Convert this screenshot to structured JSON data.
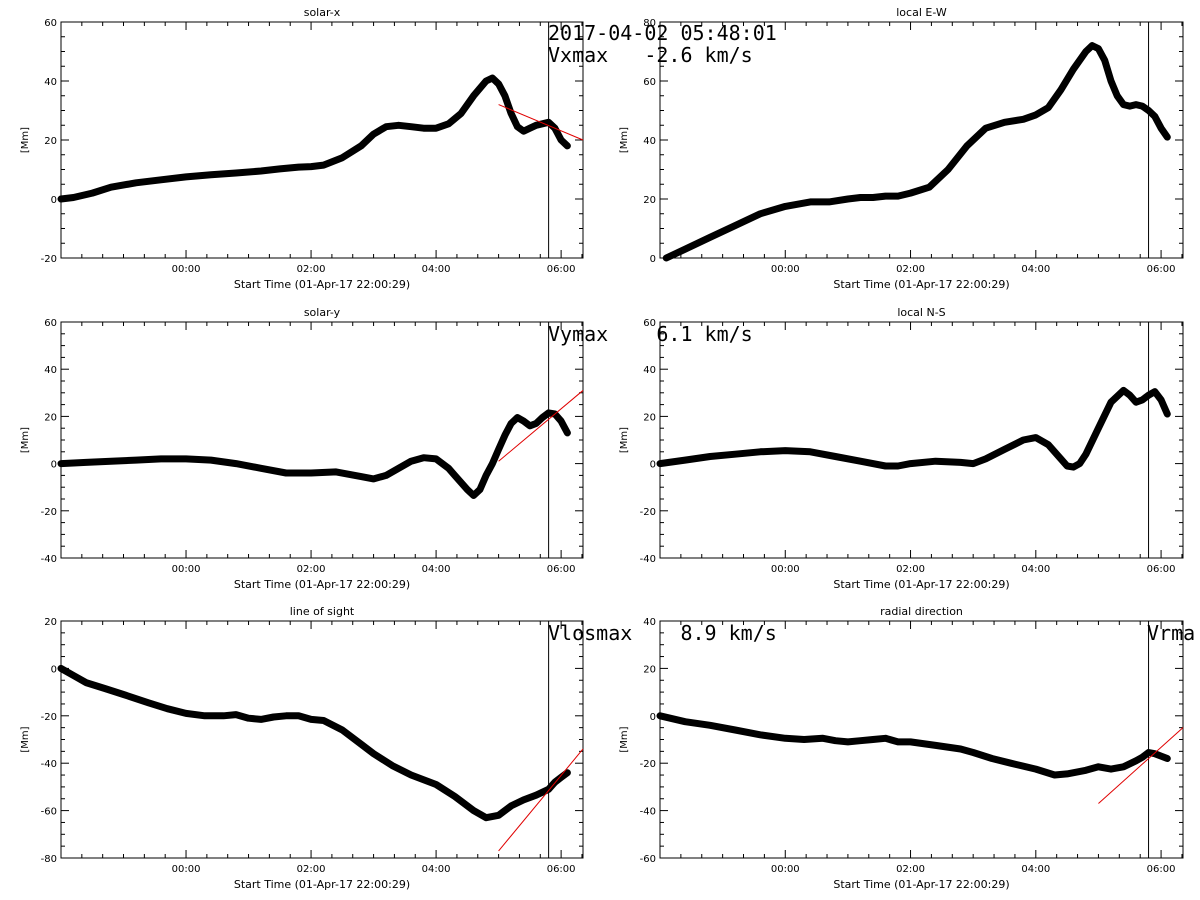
{
  "figure": {
    "timestamp": "2017-04-02 05:48:01",
    "vertical_marker_time_hours": 5.8
  },
  "chart_data": [
    {
      "type": "line",
      "title": "solar-x",
      "xlabel": "Start Time (01-Apr-17 22:00:29)",
      "ylabel": "[Mm]",
      "xlim_hours": [
        -2.0,
        6.35
      ],
      "ylim": [
        -20,
        60
      ],
      "xticks": [
        "00:00",
        "02:00",
        "04:00",
        "06:00"
      ],
      "yticks": [
        -20,
        0,
        20,
        40,
        60
      ],
      "annotation": "Vxmax   -2.6 km/s",
      "series": [
        {
          "x": [
            -2.0,
            -1.8,
            -1.5,
            -1.2,
            -0.8,
            -0.4,
            0.0,
            0.4,
            0.8,
            1.2,
            1.5,
            1.8,
            2.0,
            2.2,
            2.5,
            2.8,
            3.0,
            3.2,
            3.4,
            3.6,
            3.8,
            4.0,
            4.2,
            4.4,
            4.6,
            4.8,
            4.9,
            5.0,
            5.1,
            5.2,
            5.3,
            5.4,
            5.5,
            5.6,
            5.7,
            5.8,
            5.9,
            6.0,
            6.1
          ],
          "y": [
            0,
            0.5,
            2,
            4,
            5.5,
            6.5,
            7.5,
            8.2,
            8.8,
            9.5,
            10.2,
            10.8,
            11,
            11.5,
            14,
            18,
            22,
            24.5,
            25,
            24.5,
            24,
            24,
            25.5,
            29,
            35,
            40,
            41,
            39,
            35,
            29,
            24.5,
            23,
            24,
            25,
            25.5,
            26,
            24,
            20,
            18
          ]
        }
      ],
      "fit": {
        "x": [
          5.0,
          6.35
        ],
        "y": [
          32,
          20
        ]
      }
    },
    {
      "type": "line",
      "title": "local E-W",
      "xlabel": "Start Time (01-Apr-17 22:00:29)",
      "ylabel": "[Mm]",
      "xlim_hours": [
        -2.0,
        6.35
      ],
      "ylim": [
        0,
        80
      ],
      "xticks": [
        "00:00",
        "02:00",
        "04:00",
        "06:00"
      ],
      "yticks": [
        0,
        20,
        40,
        60,
        80
      ],
      "annotation": "",
      "series": [
        {
          "x": [
            -1.9,
            -1.6,
            -1.2,
            -0.8,
            -0.4,
            0.0,
            0.4,
            0.7,
            1.0,
            1.2,
            1.4,
            1.6,
            1.8,
            2.0,
            2.3,
            2.6,
            2.9,
            3.2,
            3.5,
            3.8,
            4.0,
            4.2,
            4.4,
            4.6,
            4.8,
            4.9,
            5.0,
            5.1,
            5.2,
            5.3,
            5.4,
            5.5,
            5.6,
            5.7,
            5.8,
            5.9,
            6.0,
            6.1
          ],
          "y": [
            0,
            3,
            7,
            11,
            15,
            17.5,
            19,
            19,
            20,
            20.5,
            20.5,
            21,
            21,
            22,
            24,
            30,
            38,
            44,
            46,
            47,
            48.5,
            51,
            57,
            64,
            70,
            72,
            71,
            67,
            60,
            55,
            52,
            51.5,
            52,
            51.5,
            50,
            48,
            44,
            41
          ]
        }
      ],
      "fit": null
    },
    {
      "type": "line",
      "title": "solar-y",
      "xlabel": "Start Time (01-Apr-17 22:00:29)",
      "ylabel": "[Mm]",
      "xlim_hours": [
        -2.0,
        6.35
      ],
      "ylim": [
        -40,
        60
      ],
      "xticks": [
        "00:00",
        "02:00",
        "04:00",
        "06:00"
      ],
      "yticks": [
        -40,
        -20,
        0,
        20,
        40,
        60
      ],
      "annotation": "Vymax    6.1 km/s",
      "series": [
        {
          "x": [
            -2.0,
            -1.6,
            -1.2,
            -0.8,
            -0.4,
            0.0,
            0.4,
            0.8,
            1.2,
            1.6,
            2.0,
            2.4,
            2.8,
            3.0,
            3.2,
            3.4,
            3.6,
            3.8,
            4.0,
            4.2,
            4.3,
            4.5,
            4.6,
            4.7,
            4.8,
            4.9,
            5.0,
            5.1,
            5.2,
            5.3,
            5.4,
            5.5,
            5.6,
            5.7,
            5.8,
            5.9,
            6.0,
            6.1
          ],
          "y": [
            0,
            0.5,
            1,
            1.5,
            2,
            2,
            1.5,
            0,
            -2,
            -4,
            -4,
            -3.5,
            -5.5,
            -6.5,
            -5,
            -2,
            1,
            2.5,
            2,
            -2,
            -5,
            -11,
            -13.5,
            -11,
            -5,
            0,
            6,
            12,
            17,
            19.5,
            18,
            16,
            17,
            19.5,
            21.5,
            21,
            18,
            13
          ]
        }
      ],
      "fit": {
        "x": [
          5.0,
          6.35
        ],
        "y": [
          1,
          31
        ]
      }
    },
    {
      "type": "line",
      "title": "local N-S",
      "xlabel": "Start Time (01-Apr-17 22:00:29)",
      "ylabel": "[Mm]",
      "xlim_hours": [
        -2.0,
        6.35
      ],
      "ylim": [
        -40,
        60
      ],
      "xticks": [
        "00:00",
        "02:00",
        "04:00",
        "06:00"
      ],
      "yticks": [
        -40,
        -20,
        0,
        20,
        40,
        60
      ],
      "annotation": "",
      "series": [
        {
          "x": [
            -2.0,
            -1.6,
            -1.2,
            -0.8,
            -0.4,
            0.0,
            0.4,
            0.8,
            1.2,
            1.6,
            1.8,
            2.0,
            2.4,
            2.8,
            3.0,
            3.2,
            3.5,
            3.8,
            4.0,
            4.2,
            4.4,
            4.5,
            4.6,
            4.7,
            4.8,
            5.0,
            5.2,
            5.4,
            5.5,
            5.6,
            5.7,
            5.8,
            5.9,
            6.0,
            6.1
          ],
          "y": [
            0,
            1.5,
            3,
            4,
            5,
            5.5,
            5,
            3,
            1,
            -1,
            -1,
            0,
            1,
            0.5,
            0,
            2,
            6,
            10,
            11,
            8,
            2,
            -1,
            -1.5,
            0,
            4,
            15,
            26,
            31,
            29,
            26,
            27,
            29,
            30.5,
            27,
            21
          ]
        }
      ],
      "fit": null
    },
    {
      "type": "line",
      "title": "line of sight",
      "xlabel": "Start Time (01-Apr-17 22:00:29)",
      "ylabel": "[Mm]",
      "xlim_hours": [
        -2.0,
        6.35
      ],
      "ylim": [
        -80,
        20
      ],
      "xticks": [
        "00:00",
        "02:00",
        "04:00",
        "06:00"
      ],
      "yticks": [
        -80,
        -60,
        -40,
        -20,
        0,
        20
      ],
      "annotation": "Vlosmax    8.9 km/s",
      "series": [
        {
          "x": [
            -2.0,
            -1.8,
            -1.6,
            -1.3,
            -1.0,
            -0.6,
            -0.3,
            0.0,
            0.3,
            0.6,
            0.8,
            1.0,
            1.2,
            1.4,
            1.6,
            1.8,
            2.0,
            2.2,
            2.5,
            2.8,
            3.0,
            3.3,
            3.6,
            4.0,
            4.3,
            4.6,
            4.8,
            5.0,
            5.2,
            5.4,
            5.6,
            5.8,
            5.9,
            6.0,
            6.1
          ],
          "y": [
            0,
            -3,
            -6,
            -8.5,
            -11,
            -14.5,
            -17,
            -19,
            -20,
            -20,
            -19.5,
            -21,
            -21.5,
            -20.5,
            -20,
            -20,
            -21.5,
            -22,
            -26,
            -32,
            -36,
            -41,
            -45,
            -49,
            -54,
            -60,
            -63,
            -62,
            -58,
            -55.5,
            -53.5,
            -51,
            -48,
            -46,
            -44
          ]
        }
      ],
      "fit": {
        "x": [
          5.0,
          6.35
        ],
        "y": [
          -77,
          -34
        ]
      }
    },
    {
      "type": "line",
      "title": "radial direction",
      "xlabel": "Start Time (01-Apr-17 22:00:29)",
      "ylabel": "[Mm]",
      "xlim_hours": [
        -2.0,
        6.35
      ],
      "ylim": [
        -60,
        40
      ],
      "xticks": [
        "00:00",
        "02:00",
        "04:00",
        "06:00"
      ],
      "yticks": [
        -60,
        -40,
        -20,
        0,
        20,
        40
      ],
      "annotation": "Vrma",
      "series": [
        {
          "x": [
            -2.0,
            -1.6,
            -1.2,
            -0.8,
            -0.4,
            0.0,
            0.3,
            0.6,
            0.8,
            1.0,
            1.2,
            1.4,
            1.6,
            1.8,
            2.0,
            2.4,
            2.8,
            3.0,
            3.3,
            3.6,
            4.0,
            4.3,
            4.5,
            4.8,
            5.0,
            5.2,
            5.4,
            5.6,
            5.7,
            5.8,
            5.9,
            6.0,
            6.1
          ],
          "y": [
            0,
            -2.5,
            -4,
            -6,
            -8,
            -9.5,
            -10,
            -9.5,
            -10.5,
            -11,
            -10.5,
            -10,
            -9.5,
            -11,
            -11,
            -12.5,
            -14,
            -15.5,
            -18,
            -20,
            -22.5,
            -25,
            -24.5,
            -23,
            -21.5,
            -22.5,
            -21.5,
            -19,
            -17.5,
            -15.5,
            -16,
            -17,
            -18
          ]
        }
      ],
      "fit": {
        "x": [
          5.0,
          6.35
        ],
        "y": [
          -37,
          -5
        ]
      }
    }
  ]
}
